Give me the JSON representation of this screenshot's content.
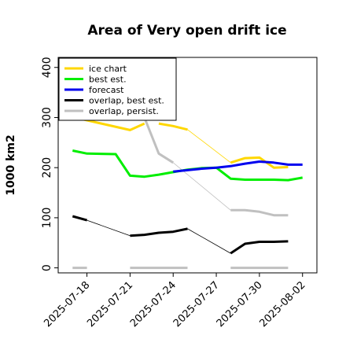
{
  "chart_data": {
    "type": "line",
    "title": "Area of Very open drift ice",
    "ylabel": "1000 km2",
    "xlabel": "",
    "ylim": [
      -10,
      420
    ],
    "yticks": [
      0,
      100,
      200,
      300,
      400
    ],
    "xlim": [
      "2025-07-16",
      "2025-08-03"
    ],
    "xticks": [
      "2025-07-18",
      "2025-07-21",
      "2025-07-24",
      "2025-07-27",
      "2025-07-30",
      "2025-08-02"
    ],
    "highlight_tick": "2025-07-24",
    "grid": false,
    "legend_position": "top-left",
    "series": [
      {
        "name": "ice chart",
        "color": "#ffd700",
        "width": 3,
        "segments": [
          [
            [
              "2025-07-17",
              301
            ],
            [
              "2025-07-21",
              275
            ],
            [
              "2025-07-22",
              288
            ]
          ],
          [
            [
              "2025-07-23",
              288
            ],
            [
              "2025-07-24",
              283
            ],
            [
              "2025-07-25",
              276
            ]
          ],
          [
            [
              "2025-07-28",
              210
            ],
            [
              "2025-07-29",
              219
            ],
            [
              "2025-07-30",
              220
            ],
            [
              "2025-07-31",
              200
            ],
            [
              "2025-08-01",
              201
            ]
          ]
        ],
        "connectors": [
          [
            [
              "2025-07-25",
              276
            ],
            [
              "2025-07-28",
              210
            ]
          ]
        ]
      },
      {
        "name": "best est.",
        "color": "#00ee00",
        "width": 3,
        "segments": [
          [
            [
              "2025-07-17",
              234
            ],
            [
              "2025-07-18",
              228
            ],
            [
              "2025-07-20",
              227
            ],
            [
              "2025-07-21",
              184
            ],
            [
              "2025-07-22",
              182
            ],
            [
              "2025-07-23",
              186
            ],
            [
              "2025-07-24",
              191
            ],
            [
              "2025-07-25",
              196
            ],
            [
              "2025-07-26",
              199
            ],
            [
              "2025-07-27",
              200
            ],
            [
              "2025-07-28",
              178
            ],
            [
              "2025-07-29",
              176
            ],
            [
              "2025-07-30",
              176
            ],
            [
              "2025-07-31",
              176
            ],
            [
              "2025-08-01",
              175
            ],
            [
              "2025-08-02",
              180
            ]
          ]
        ],
        "connectors": []
      },
      {
        "name": "forecast",
        "color": "#0000ee",
        "width": 3,
        "segments": [
          [
            [
              "2025-07-24",
              192
            ],
            [
              "2025-07-25",
              195
            ],
            [
              "2025-07-26",
              198
            ],
            [
              "2025-07-27",
              200
            ],
            [
              "2025-07-28",
              203
            ],
            [
              "2025-07-29",
              208
            ],
            [
              "2025-07-30",
              212
            ],
            [
              "2025-07-31",
              210
            ],
            [
              "2025-08-01",
              206
            ],
            [
              "2025-08-02",
              206
            ]
          ]
        ],
        "connectors": []
      },
      {
        "name": "overlap, best est.",
        "color": "#000000",
        "width": 3,
        "segments": [
          [
            [
              "2025-07-17",
              103
            ],
            [
              "2025-07-18",
              95
            ]
          ],
          [
            [
              "2025-07-21",
              64
            ],
            [
              "2025-07-22",
              66
            ],
            [
              "2025-07-23",
              70
            ],
            [
              "2025-07-24",
              72
            ],
            [
              "2025-07-25",
              78
            ]
          ],
          [
            [
              "2025-07-28",
              29
            ],
            [
              "2025-07-29",
              48
            ],
            [
              "2025-07-30",
              52
            ],
            [
              "2025-07-31",
              52
            ],
            [
              "2025-08-01",
              53
            ]
          ]
        ],
        "connectors": [
          [
            [
              "2025-07-18",
              95
            ],
            [
              "2025-07-21",
              64
            ]
          ],
          [
            [
              "2025-07-25",
              78
            ],
            [
              "2025-07-28",
              29
            ]
          ]
        ]
      },
      {
        "name": "overlap, persist.",
        "color": "#c0c0c0",
        "width": 3,
        "segments": [
          [
            [
              "2025-07-17",
              0
            ],
            [
              "2025-07-18",
              0
            ]
          ],
          [
            [
              "2025-07-21",
              0
            ],
            [
              "2025-07-25",
              0
            ]
          ],
          [
            [
              "2025-07-28",
              0
            ],
            [
              "2025-08-01",
              0
            ]
          ],
          [
            [
              "2025-07-22",
              300
            ],
            [
              "2025-07-23",
              228
            ],
            [
              "2025-07-24",
              210
            ]
          ],
          [
            [
              "2025-07-28",
              115
            ],
            [
              "2025-07-29",
              115
            ],
            [
              "2025-07-30",
              112
            ],
            [
              "2025-07-31",
              105
            ],
            [
              "2025-08-01",
              105
            ]
          ]
        ],
        "connectors": [
          [
            [
              "2025-07-24",
              210
            ],
            [
              "2025-07-28",
              115
            ]
          ]
        ]
      }
    ]
  }
}
